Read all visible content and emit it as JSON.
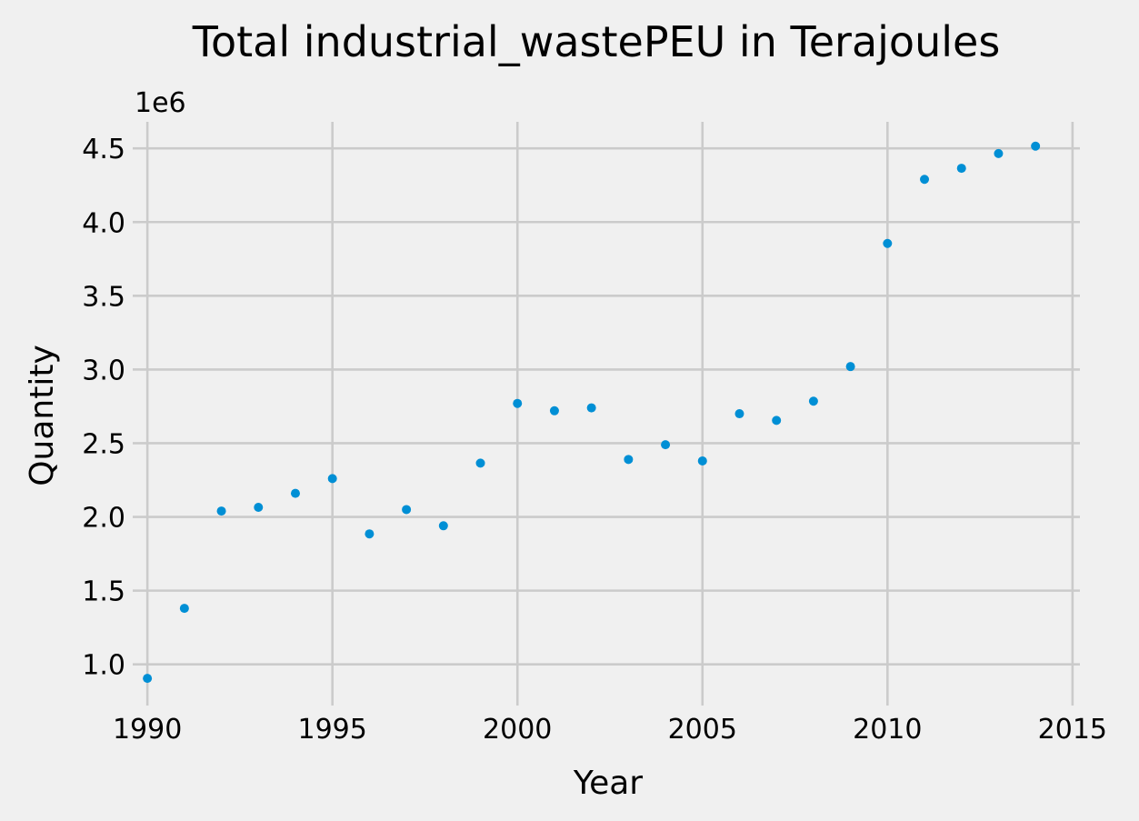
{
  "chart_data": {
    "type": "scatter",
    "title": "Total industrial_wastePEU in Terajoules",
    "xlabel": "Year",
    "ylabel": "Quantity",
    "y_offset_label": "1e6",
    "xlim": [
      1989.8,
      2015.2
    ],
    "ylim": [
      0.77,
      4.68
    ],
    "xticks": [
      1990,
      1995,
      2000,
      2005,
      2010,
      2015
    ],
    "yticks": [
      1.0,
      1.5,
      2.0,
      2.5,
      3.0,
      3.5,
      4.0,
      4.5
    ],
    "ytick_labels": [
      "1.0",
      "1.5",
      "2.0",
      "2.5",
      "3.0",
      "3.5",
      "4.0",
      "4.5"
    ],
    "grid": true,
    "marker_color": "#008fd5",
    "series": [
      {
        "x": [
          1990,
          1991,
          1992,
          1993,
          1994,
          1995,
          1996,
          1997,
          1998,
          1999,
          2000,
          2001,
          2002,
          2003,
          2004,
          2005,
          2006,
          2007,
          2008,
          2009,
          2010,
          2011,
          2012,
          2013,
          2014
        ],
        "y": [
          0.905,
          1.38,
          2.04,
          2.065,
          2.16,
          2.26,
          1.885,
          2.05,
          1.94,
          2.365,
          2.77,
          2.72,
          2.74,
          2.39,
          2.49,
          2.38,
          2.7,
          2.655,
          2.785,
          3.02,
          3.855,
          4.29,
          4.365,
          4.465,
          4.515
        ]
      }
    ]
  }
}
